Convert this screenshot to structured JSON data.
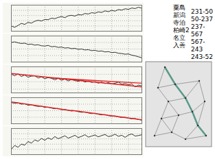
{
  "chart_data": [
    {
      "type": "line",
      "xlim": [
        0,
        39
      ],
      "xticks": [
        0,
        5,
        10,
        15,
        20,
        25,
        30,
        35
      ],
      "ylim": [
        0,
        10
      ],
      "yticks": [
        2,
        4,
        6,
        8
      ],
      "grid": true,
      "tick_labels": false,
      "series": [
        {
          "color": "#000000",
          "x": [
            0,
            1,
            2,
            3,
            4,
            5,
            6,
            7,
            8,
            9,
            10,
            11,
            12,
            13,
            14,
            15,
            16,
            17,
            18,
            19,
            20,
            21,
            22,
            23,
            24,
            25,
            26,
            27,
            28,
            29,
            30,
            31,
            32,
            33,
            34,
            35,
            36,
            37,
            38,
            39
          ],
          "values": [
            2,
            1.5,
            2.2,
            3,
            2.6,
            3.4,
            3.1,
            3.8,
            4.2,
            3.9,
            4.5,
            4.4,
            5,
            4.8,
            5.3,
            5.6,
            5.2,
            5.9,
            6.1,
            5.8,
            6.4,
            6.2,
            6.8,
            6.6,
            7.1,
            6.9,
            7.4,
            7.2,
            7.8,
            7.5,
            8,
            7.7,
            8.3,
            8.1,
            8.6,
            8.4,
            8.9,
            8.7,
            9.2,
            8.8
          ]
        }
      ]
    },
    {
      "type": "line",
      "xlim": [
        0,
        39
      ],
      "xticks": [
        0,
        5,
        10,
        15,
        20,
        25,
        30,
        35
      ],
      "ylim": [
        2,
        10
      ],
      "yticks": [
        4,
        6,
        8
      ],
      "grid": true,
      "tick_labels": false,
      "series": [
        {
          "color": "#000000",
          "x": [
            0,
            1,
            2,
            3,
            4,
            5,
            6,
            7,
            8,
            9,
            10,
            11,
            12,
            13,
            14,
            15,
            16,
            17,
            18,
            19,
            20,
            21,
            22,
            23,
            24,
            25,
            26,
            27,
            28,
            29,
            30,
            31,
            32,
            33,
            34,
            35,
            36,
            37,
            38,
            39
          ],
          "values": [
            8,
            8.2,
            7.9,
            7.7,
            7.8,
            7.4,
            7.5,
            7.2,
            7.3,
            7,
            6.9,
            7.1,
            6.7,
            6.8,
            6.5,
            6.6,
            6.3,
            6.4,
            6.1,
            6.2,
            5.9,
            6,
            5.7,
            5.8,
            5.5,
            5.6,
            5.3,
            5.4,
            5.1,
            5.2,
            4.9,
            5,
            4.7,
            4.6,
            4.4,
            4.5,
            4.1,
            3.9,
            3.6,
            3.3
          ]
        }
      ]
    },
    {
      "type": "line",
      "xlim": [
        0,
        39
      ],
      "xticks": [
        0,
        5,
        10,
        15,
        20,
        25,
        30,
        35
      ],
      "ylim": [
        3,
        10
      ],
      "yticks": [
        4,
        6,
        8
      ],
      "grid": true,
      "tick_labels": false,
      "series": [
        {
          "color": "#000000",
          "x": [
            0,
            1,
            2,
            3,
            4,
            5,
            6,
            7,
            8,
            9,
            10,
            11,
            12,
            13,
            14,
            15,
            16,
            17,
            18,
            19,
            20,
            21,
            22,
            23,
            24,
            25,
            26,
            27,
            28,
            29,
            30,
            31,
            32,
            33,
            34,
            35,
            36,
            37,
            38,
            39
          ],
          "values": [
            8,
            7.6,
            8.1,
            7.4,
            7.8,
            7.2,
            7.5,
            7.6,
            7,
            7.3,
            6.8,
            7.1,
            6.9,
            6.5,
            6.9,
            6.4,
            6.7,
            6.2,
            6.6,
            6.3,
            6.1,
            6.4,
            5.9,
            6.2,
            5.8,
            6,
            5.6,
            5.9,
            5.5,
            5.8,
            5.4,
            5.6,
            5.9,
            5.3,
            5.5,
            5.2,
            5.4,
            4.6,
            5.1,
            4.9
          ]
        },
        {
          "color": "#e02020",
          "x": [
            0,
            39
          ],
          "values": [
            8.2,
            4.6
          ]
        },
        {
          "color": "#e02020",
          "x": [
            12,
            39
          ],
          "values": [
            7.0,
            5.6
          ]
        }
      ]
    },
    {
      "type": "line",
      "xlim": [
        0,
        39
      ],
      "xticks": [
        0,
        5,
        10,
        15,
        20,
        25,
        30,
        35
      ],
      "ylim": [
        2,
        10
      ],
      "yticks": [
        4,
        6,
        8
      ],
      "grid": true,
      "tick_labels": false,
      "series": [
        {
          "color": "#000000",
          "x": [
            0,
            1,
            2,
            3,
            4,
            5,
            6,
            7,
            8,
            9,
            10,
            11,
            12,
            13,
            14,
            15,
            16,
            17,
            18,
            19,
            20,
            21,
            22,
            23,
            24,
            25,
            26,
            27,
            28,
            29,
            30,
            31,
            32,
            33,
            34,
            35,
            36,
            37,
            38,
            39
          ],
          "values": [
            8.5,
            8.3,
            8.4,
            8,
            8.1,
            7.7,
            7.8,
            7.5,
            7.3,
            7.4,
            7,
            7.1,
            6.8,
            6.6,
            6.7,
            6.3,
            6.4,
            6.1,
            5.9,
            6,
            5.7,
            5.5,
            5.6,
            5.3,
            5.1,
            5.2,
            4.9,
            4.7,
            4.8,
            4.5,
            4.3,
            4.4,
            4.1,
            3.9,
            4,
            3.7,
            3.5,
            3.6,
            3.3,
            3.1
          ]
        },
        {
          "color": "#e02020",
          "x": [
            0,
            18
          ],
          "values": [
            8.7,
            6.0
          ]
        },
        {
          "color": "#e02020",
          "x": [
            18,
            39
          ],
          "values": [
            6.1,
            3.2
          ]
        }
      ]
    },
    {
      "type": "line",
      "xlim": [
        0,
        39
      ],
      "xticks": [
        0,
        5,
        10,
        15,
        20,
        25,
        30,
        35
      ],
      "ylim": [
        0,
        10
      ],
      "yticks": [
        2,
        4,
        6,
        8
      ],
      "grid": true,
      "tick_labels": false,
      "series": [
        {
          "color": "#000000",
          "x": [
            0,
            1,
            2,
            3,
            4,
            5,
            6,
            7,
            8,
            9,
            10,
            11,
            12,
            13,
            14,
            15,
            16,
            17,
            18,
            19,
            20,
            21,
            22,
            23,
            24,
            25,
            26,
            27,
            28,
            29,
            30,
            31,
            32,
            33,
            34,
            35,
            36,
            37,
            38,
            39
          ],
          "values": [
            2,
            3.5,
            2.8,
            4,
            3.6,
            5,
            4.4,
            5.6,
            5.1,
            6.2,
            5.5,
            6.4,
            5.8,
            6.9,
            6.1,
            6.6,
            7.2,
            6.3,
            6.8,
            7.4,
            6.5,
            7,
            7.6,
            6.7,
            7.1,
            7.5,
            6.8,
            7.3,
            7.7,
            6.9,
            7.2,
            7.8,
            7,
            7.4,
            6.6,
            7.5,
            7.9,
            7.1,
            7.3,
            7.6
          ]
        }
      ]
    }
  ],
  "legend_text": {
    "stations": [
      "粟島",
      "新潟",
      "寺泊",
      "柏崎2",
      "名立",
      "入善"
    ],
    "baselines": [
      "231-50",
      "50-237",
      "237-567",
      "567-243",
      "243-52"
    ]
  }
}
